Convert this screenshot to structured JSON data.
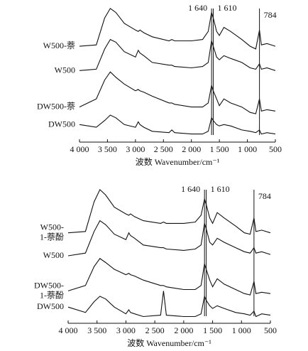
{
  "chart_data": [
    {
      "type": "line",
      "xlabel": "波数 Wavenumber/cm⁻¹",
      "x": [
        4000,
        3700,
        3550,
        3450,
        3350,
        3200,
        3000,
        2950,
        2920,
        2850,
        2700,
        2400,
        2350,
        2300,
        2000,
        1800,
        1700,
        1640,
        1610,
        1550,
        1500,
        1420,
        1300,
        1100,
        950,
        850,
        784,
        750,
        650,
        500
      ],
      "xlim": [
        4000,
        500
      ],
      "ylim": [
        0,
        100
      ],
      "xticks": [
        {
          "value": 4000,
          "label": "4 000"
        },
        {
          "value": 3500,
          "label": "3 500"
        },
        {
          "value": 3000,
          "label": "3 000"
        },
        {
          "value": 2500,
          "label": "2 500"
        },
        {
          "value": 2000,
          "label": "2 000"
        },
        {
          "value": 1500,
          "label": "1 500"
        },
        {
          "value": 1000,
          "label": "1 000"
        },
        500
      ],
      "annotations": [
        {
          "text": "1 640",
          "x": 1640
        },
        {
          "text": "1 610",
          "x": 1610
        },
        {
          "text": "784",
          "x": 784
        }
      ],
      "series": [
        {
          "name": "W500-萘",
          "color": "#111111",
          "values": [
            71,
            72,
            92,
            99,
            96,
            88,
            83,
            82,
            83,
            81,
            78,
            75,
            76,
            75,
            75,
            76,
            82,
            96,
            92,
            82,
            79,
            85,
            82,
            76,
            71,
            69,
            83,
            72,
            73,
            71
          ]
        },
        {
          "name": "W500",
          "color": "#111111",
          "values": [
            53,
            54,
            69,
            76,
            74,
            67,
            63,
            68,
            66,
            64,
            59,
            57,
            57,
            56,
            55,
            56,
            59,
            75,
            71,
            63,
            61,
            64,
            62,
            59,
            55,
            54,
            58,
            54,
            55,
            53
          ]
        },
        {
          "name": "DW500-萘",
          "color": "#111111",
          "values": [
            26,
            32,
            46,
            52,
            48,
            43,
            38,
            39,
            38,
            37,
            34,
            29,
            29,
            28,
            26,
            26,
            29,
            42,
            38,
            32,
            27,
            32,
            29,
            26,
            22,
            21,
            32,
            23,
            24,
            23
          ]
        },
        {
          "name": "DW500",
          "color": "#111111",
          "values": [
            13,
            11,
            16,
            20,
            18,
            13,
            11,
            15,
            13,
            11,
            8,
            7,
            9,
            7,
            6,
            6,
            8,
            18,
            16,
            13,
            12,
            13,
            12,
            9,
            8,
            7,
            9,
            6,
            7,
            6
          ]
        }
      ]
    },
    {
      "type": "line",
      "xlabel": "波数 Wavenumber/cm⁻¹",
      "x": [
        4000,
        3700,
        3550,
        3450,
        3350,
        3200,
        3000,
        2950,
        2920,
        2850,
        2700,
        2400,
        2350,
        2300,
        2000,
        1800,
        1700,
        1640,
        1610,
        1550,
        1500,
        1420,
        1300,
        1100,
        950,
        850,
        784,
        750,
        650,
        500
      ],
      "xlim": [
        4000,
        500
      ],
      "ylim": [
        0,
        100
      ],
      "xticks": [
        {
          "value": 4000,
          "label": "4 000"
        },
        {
          "value": 3500,
          "label": "3 500"
        },
        {
          "value": 3000,
          "label": "3 000"
        },
        {
          "value": 2500,
          "label": "2 500"
        },
        {
          "value": 2000,
          "label": "2 000"
        },
        {
          "value": 1500,
          "label": "1 500"
        },
        {
          "value": 1000,
          "label": "1 000"
        },
        500
      ],
      "annotations": [
        {
          "text": "1 640",
          "x": 1640
        },
        {
          "text": "1 610",
          "x": 1610
        },
        {
          "text": "784",
          "x": 784
        }
      ],
      "series": [
        {
          "name": "W500-\n1-萘酚",
          "color": "#111111",
          "values": [
            67,
            68,
            90,
            99,
            95,
            86,
            81,
            80,
            81,
            79,
            76,
            74,
            75,
            74,
            74,
            75,
            80,
            92,
            88,
            78,
            74,
            82,
            78,
            72,
            67,
            66,
            78,
            68,
            69,
            67
          ]
        },
        {
          "name": "W500",
          "color": "#111111",
          "values": [
            50,
            52,
            68,
            76,
            73,
            66,
            62,
            67,
            65,
            63,
            58,
            56,
            56,
            55,
            54,
            55,
            58,
            74,
            70,
            60,
            58,
            63,
            60,
            56,
            53,
            52,
            56,
            52,
            53,
            51
          ]
        },
        {
          "name": "DW500-\n1-萘酚",
          "color": "#111111",
          "values": [
            24,
            28,
            42,
            48,
            45,
            40,
            36,
            37,
            36,
            35,
            32,
            28,
            28,
            27,
            25,
            25,
            28,
            44,
            40,
            32,
            27,
            33,
            29,
            25,
            22,
            21,
            31,
            22,
            23,
            22
          ]
        },
        {
          "name": "DW500",
          "color": "#111111",
          "values": [
            12,
            8,
            16,
            20,
            18,
            12,
            7,
            10,
            8,
            7,
            5,
            6,
            24,
            6,
            5,
            5,
            7,
            20,
            17,
            13,
            11,
            13,
            11,
            8,
            7,
            6,
            9,
            5,
            7,
            6
          ]
        }
      ]
    }
  ]
}
